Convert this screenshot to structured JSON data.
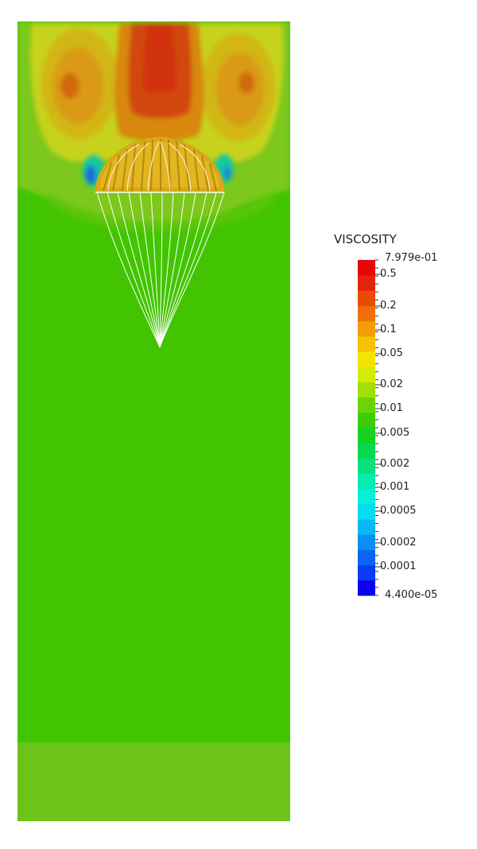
{
  "legend": {
    "title": "VISCOSITY",
    "max_label": "7.979e-01",
    "min_label": "4.400e-05",
    "tick_labels": [
      "0.5",
      "0.2",
      "0.1",
      "0.05",
      "0.02",
      "0.01",
      "0.005",
      "0.002",
      "0.001",
      "0.0005",
      "0.0002",
      "0.0001"
    ],
    "colors": [
      "#0a00ee",
      "#0a3cf2",
      "#0a66f0",
      "#0a90f2",
      "#08b8f2",
      "#06dcf0",
      "#06f0d8",
      "#08eab0",
      "#0ae07e",
      "#0ad850",
      "#16d21e",
      "#3ecc08",
      "#6ad404",
      "#a0e004",
      "#d4ec04",
      "#f4e404",
      "#f6c204",
      "#f49c06",
      "#ee7006",
      "#e84a08",
      "#e42408",
      "#e40808"
    ]
  },
  "scene": {
    "subject": "parachute",
    "field_colors": {
      "ambient": "#42c400",
      "upper": "#7cc81e",
      "bottom_band": "#6cc41a",
      "wake_yellow": "#c6d21a",
      "wake_orange": "#d89a14",
      "wake_red": "#d23c0e",
      "low_blue": "#1a6cd8",
      "canopy": "#d8a818",
      "lines": "#ffffff"
    }
  }
}
